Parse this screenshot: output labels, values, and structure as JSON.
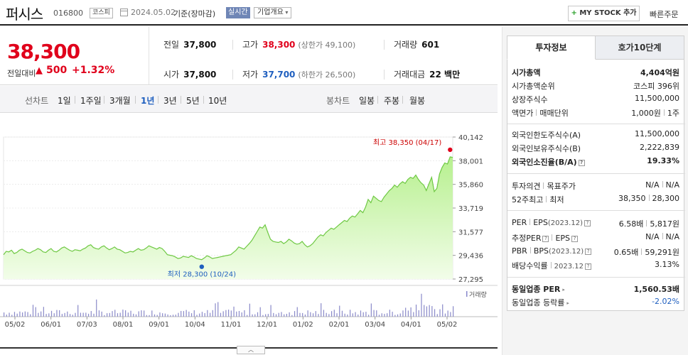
{
  "header": {
    "name": "퍼시스",
    "code": "016800",
    "market": "코스피",
    "date": "2024.05.02",
    "basis": "기준(장마감)",
    "realtime": "실시간",
    "company_info": "기업개요",
    "my_stock": "MY STOCK 추가",
    "my_stock_plus": "+",
    "quick_order": "빠른주문"
  },
  "price": {
    "current": "38,300",
    "compare_label": "전일대비",
    "arrow": "▲",
    "change": "500",
    "rate": "+1.32%"
  },
  "info": {
    "prev_label": "전일",
    "prev": "37,800",
    "high_label": "고가",
    "high": "38,300",
    "upper_limit": "(상한가 49,100)",
    "volume_label": "거래량",
    "volume": "601",
    "open_label": "시가",
    "open": "37,800",
    "low_label": "저가",
    "low": "37,700",
    "lower_limit": "(하한가 26,500)",
    "amount_label": "거래대금",
    "amount": "22 백만"
  },
  "period": {
    "line_label": "선차트",
    "line_items": [
      "1일",
      "1주일",
      "3개월",
      "1년",
      "3년",
      "5년",
      "10년"
    ],
    "active": "1년",
    "candle_label": "봉차트",
    "candle_items": [
      "일봉",
      "주봉",
      "월봉"
    ]
  },
  "chart_data": {
    "type": "area",
    "y_ticks": [
      "40,142",
      "38,001",
      "35,860",
      "33,719",
      "31,577",
      "29,436",
      "27,295"
    ],
    "ylim": [
      27295,
      40142
    ],
    "x_ticks": [
      "05/02",
      "06/01",
      "07/03",
      "08/01",
      "09/01",
      "10/04",
      "11/01",
      "12/01",
      "01/02",
      "02/01",
      "03/04",
      "04/01",
      "05/02"
    ],
    "high_annotation": "최고 38,350 (04/17)",
    "low_annotation": "최저 28,300 (10/24)",
    "volume_label": "거래량",
    "series": [
      {
        "values": [
          29500,
          29800,
          29750,
          29900,
          29600,
          29700,
          29900,
          30000,
          29850,
          29700,
          29650,
          29800,
          29900,
          30050,
          29950,
          29750,
          29700,
          29900,
          30050,
          29800,
          29750,
          29900,
          30100,
          30200,
          30050,
          29900,
          29800,
          29950,
          29900,
          29850,
          30000,
          30100,
          30300,
          30400,
          30150,
          30050,
          30000,
          30200,
          30300,
          30100,
          29950,
          30050,
          30200,
          30000,
          29950,
          29800,
          29650,
          29700,
          29800,
          29750,
          29900,
          30050,
          29900,
          29950,
          30100,
          30300,
          30200,
          30100,
          30000,
          30150,
          30050,
          29800,
          29500,
          29450,
          29400,
          29300,
          29150,
          29200,
          29350,
          29300,
          29250,
          29400,
          29300,
          29150,
          29100,
          29050,
          29200,
          29400,
          29300,
          29150,
          29200,
          29250,
          29300,
          29350,
          29400,
          29450,
          29500,
          29700,
          29900,
          30200,
          30100,
          30000,
          30250,
          30500,
          30800,
          31200,
          31600,
          32000,
          31900,
          32200,
          31500,
          30900,
          30700,
          30650,
          30600,
          30700,
          30500,
          30650,
          30900,
          30750,
          30550,
          30450,
          30500,
          30700,
          30400,
          30200,
          30300,
          30500,
          30800,
          31100,
          31300,
          31200,
          31500,
          31700,
          31900,
          31800,
          32000,
          32200,
          32400,
          32600,
          32500,
          32800,
          33000,
          32900,
          33200,
          33500,
          33300,
          33800,
          34500,
          34200,
          34800,
          34600,
          34400,
          34300,
          34700,
          35000,
          35300,
          35500,
          35800,
          35600,
          35900,
          36100,
          35950,
          36300,
          36500,
          36400,
          36700,
          36300,
          36000,
          35800,
          35300,
          35900,
          36500,
          35200,
          35500,
          36800,
          37400,
          37800,
          37700,
          38350,
          38300
        ]
      }
    ]
  },
  "panel": {
    "tab_invest": "투자정보",
    "tab_hoga": "호가10단계",
    "market_cap_label": "시가총액",
    "market_cap": "4,404억원",
    "rank_label": "시가총액순위",
    "rank": "코스피 396위",
    "shares_label": "상장주식수",
    "shares": "11,500,000",
    "par_label": "액면가",
    "unit_label": "매매단위",
    "par": "1,000원",
    "unit": "1주",
    "foreign_limit_label": "외국인한도주식수(A)",
    "foreign_limit": "11,500,000",
    "foreign_hold_label": "외국인보유주식수(B)",
    "foreign_hold": "2,222,839",
    "foreign_rate_label": "외국인소진율(B/A)",
    "foreign_rate": "19.33%",
    "opinion_label": "투자의견",
    "target_label": "목표주가",
    "opinion": "N/A",
    "target": "N/A",
    "week52_label": "52주최고",
    "week52_low_label": "최저",
    "week52_high": "38,350",
    "week52_low": "28,300",
    "per_label": "PER",
    "eps_label": "EPS",
    "eps_year": "(2023.12)",
    "per": "6.58배",
    "eps": "5,817원",
    "est_per_label": "추정PER",
    "est_eps_label": "EPS",
    "est_per": "N/A",
    "est_eps": "N/A",
    "pbr_label": "PBR",
    "bps_label": "BPS",
    "bps_year": "(2023.12)",
    "pbr": "0.65배",
    "bps": "59,291원",
    "div_label": "배당수익률",
    "div_year": "2023.12",
    "div": "3.13%",
    "industry_per_label": "동일업종 PER",
    "industry_per": "1,560.53배",
    "industry_rate_label": "동일업종 등락률",
    "industry_rate": "-2.02%",
    "q": "?"
  },
  "colors": {
    "up": "#e0001b",
    "down": "#1f5fbf"
  }
}
